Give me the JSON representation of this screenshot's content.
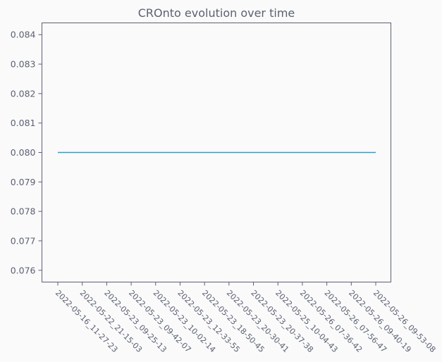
{
  "chart_data": {
    "type": "line",
    "title": "CROnto evolution over time",
    "xlabel": "",
    "ylabel": "",
    "categories": [
      "2022-05-16_11-27-23",
      "2022-05-22_21-15-03",
      "2022-05-23_09-25-13",
      "2022-05-23_09-42-07",
      "2022-05-23_10-02-14",
      "2022-05-23_12-33-55",
      "2022-05-23_18-50-45",
      "2022-05-23_20-30-41",
      "2022-05-23_20-37-38",
      "2022-05-25_10-04-43",
      "2022-05-26_07-36-42",
      "2022-05-26_07-56-47",
      "2022-05-26_09-40-19",
      "2022-05-26_09-53-08"
    ],
    "series": [
      {
        "color": "#2a9fd6",
        "values": [
          0.08,
          0.08,
          0.08,
          0.08,
          0.08,
          0.08,
          0.08,
          0.08,
          0.08,
          0.08,
          0.08,
          0.08,
          0.08,
          0.08
        ]
      }
    ],
    "ylim": [
      0.0756,
      0.0844
    ],
    "yticks": [
      "0.076",
      "0.077",
      "0.078",
      "0.079",
      "0.080",
      "0.081",
      "0.082",
      "0.083",
      "0.084"
    ],
    "grid": false,
    "legend": "none"
  }
}
